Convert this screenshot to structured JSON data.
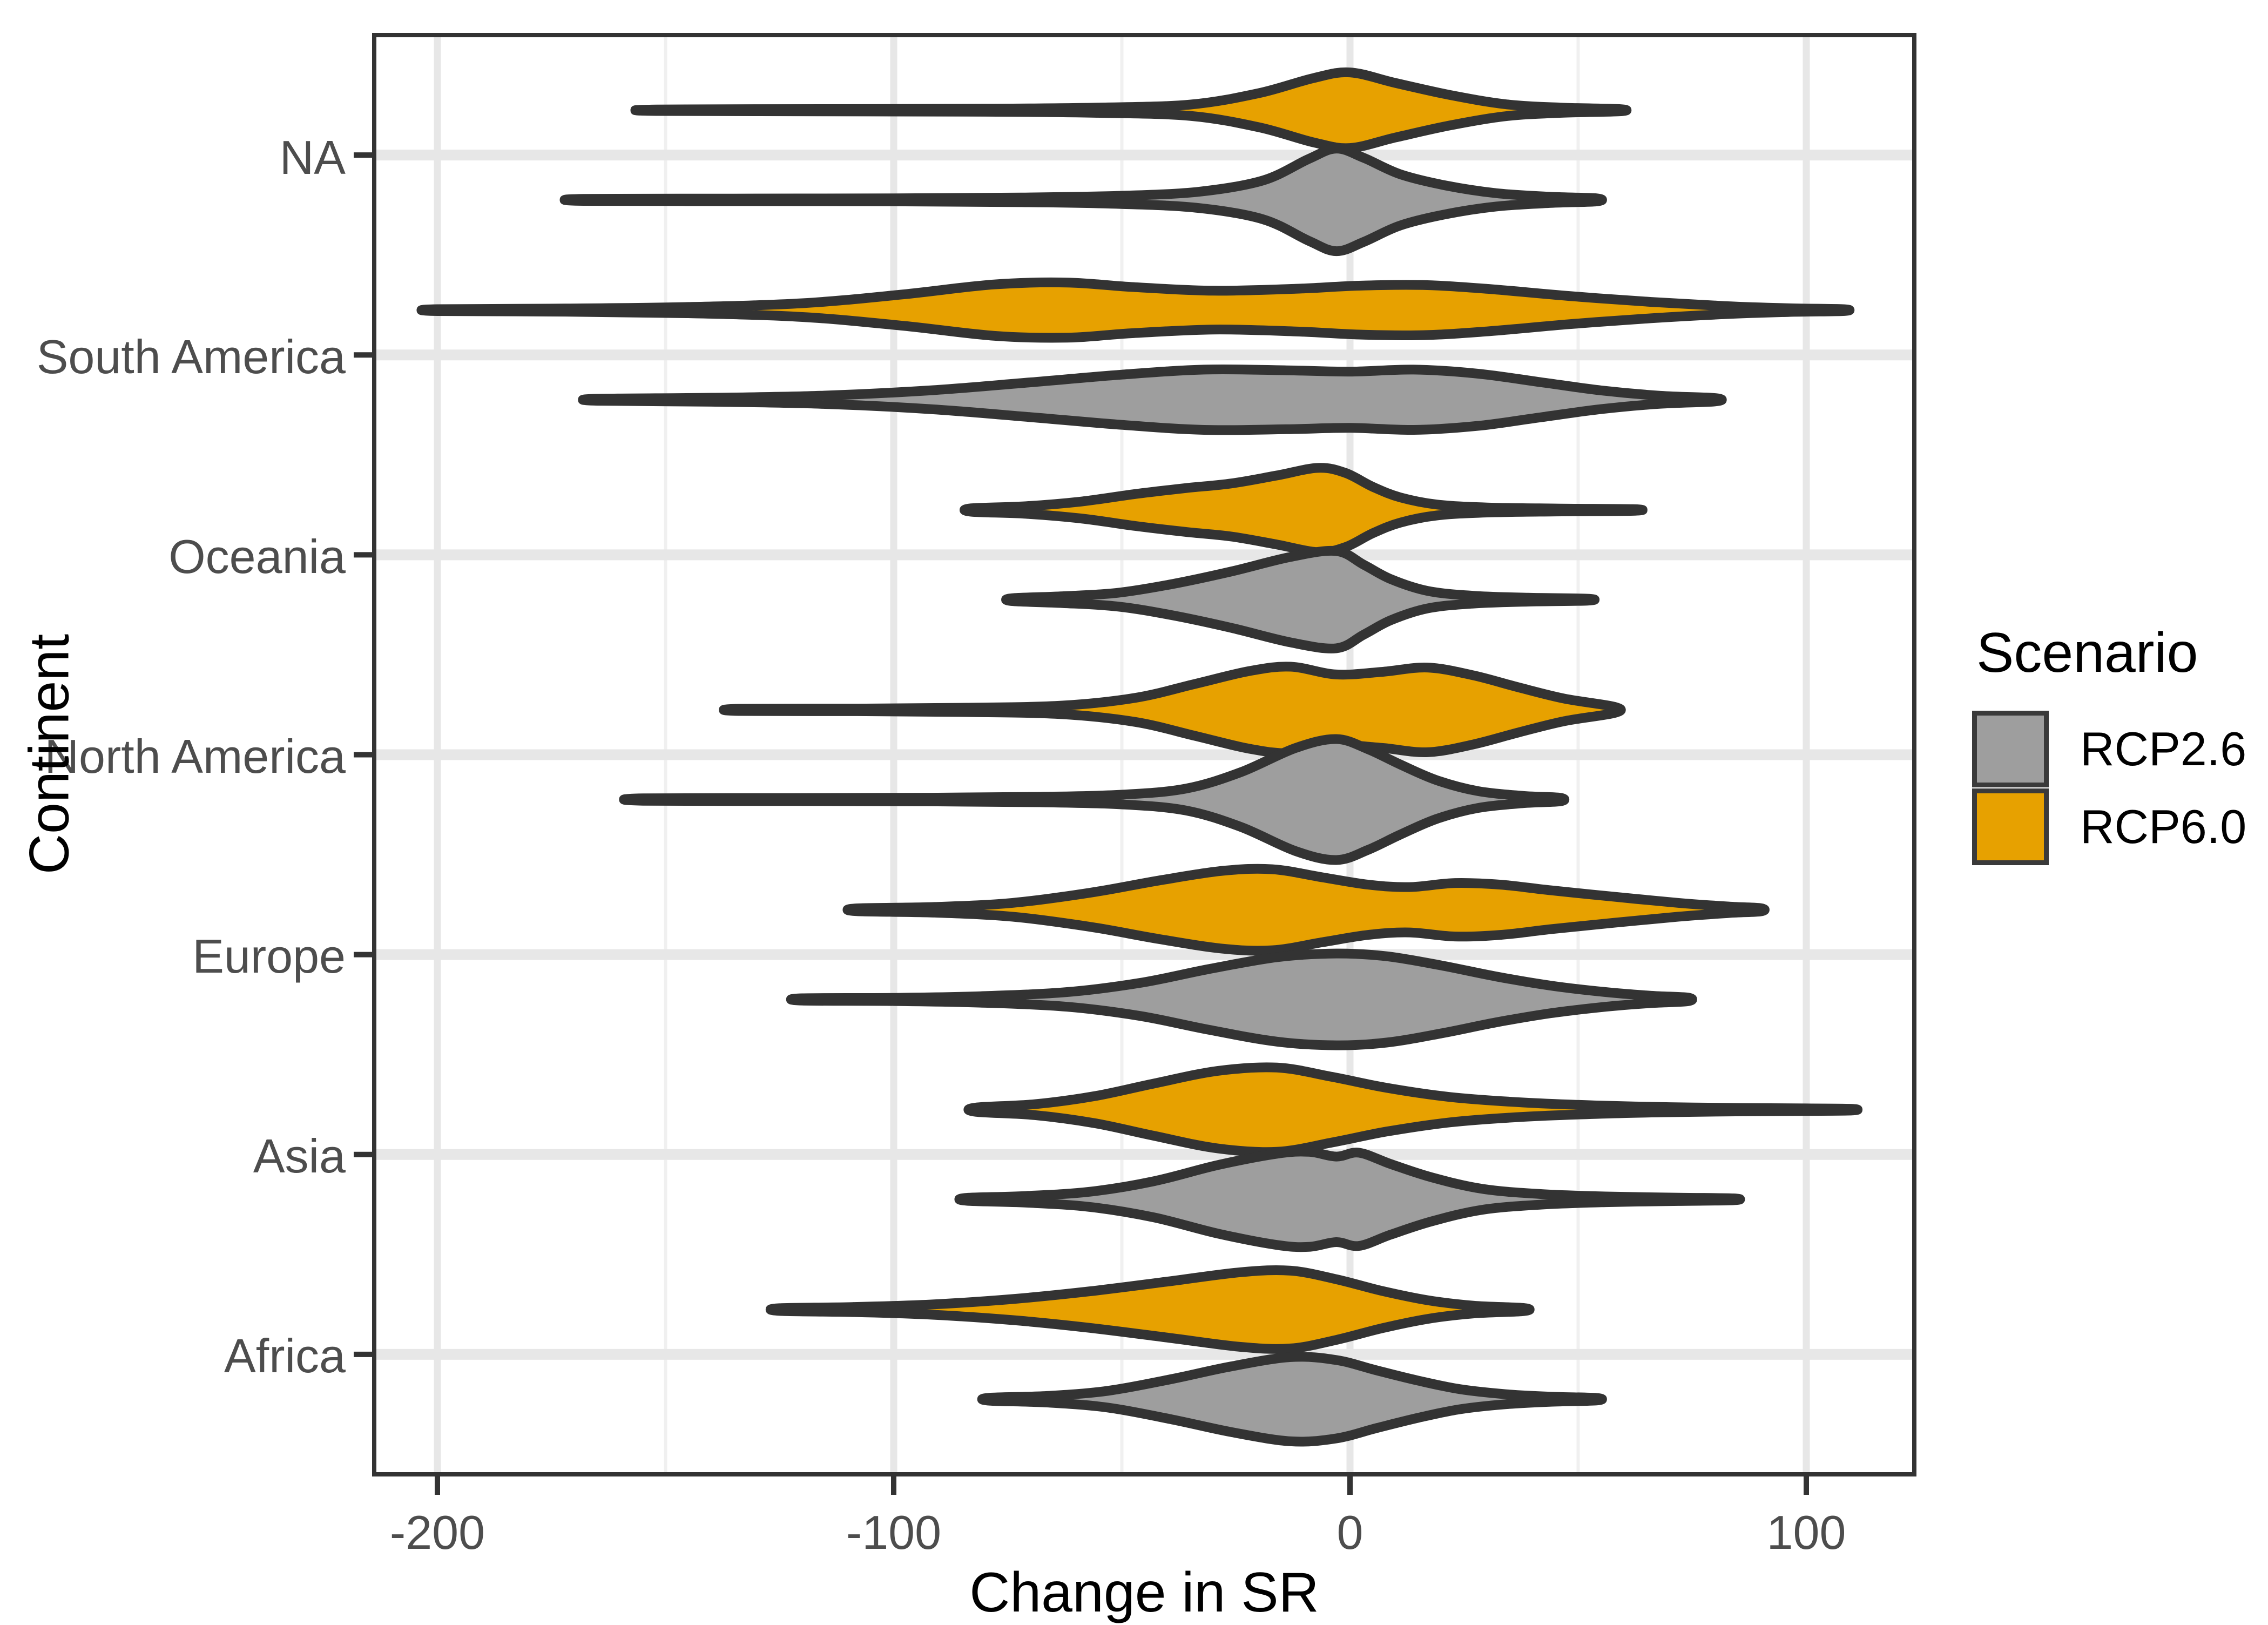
{
  "axes": {
    "x": {
      "title": "Change in SR",
      "ticks": [
        {
          "value": -200,
          "label": "-200"
        },
        {
          "value": -100,
          "label": "-100"
        },
        {
          "value": 0,
          "label": "0"
        },
        {
          "value": 100,
          "label": "100"
        }
      ],
      "minor_ticks": [
        -150,
        -50,
        50
      ],
      "domain": [
        -214,
        124
      ]
    },
    "y": {
      "title": "Continent",
      "categories": [
        "NA",
        "South America",
        "Oceania",
        "North America",
        "Europe",
        "Asia",
        "Africa"
      ]
    }
  },
  "legend": {
    "title": "Scenario",
    "items": [
      {
        "label": "RCP2.6",
        "color": "#9e9e9e"
      },
      {
        "label": "RCP6.0",
        "color": "#e7a100"
      }
    ]
  },
  "colors": {
    "background": "#ffffff",
    "panel_border": "#333333",
    "violin_outline": "#333333",
    "grid_major": "#e7e7e7",
    "grid_minor": "#f0f0f0",
    "tick_mark": "#333333",
    "tick_text": "#4d4d4d",
    "gray_fill": "#9e9e9e",
    "orange_fill": "#e7a100"
  },
  "chart_data": {
    "type": "violin",
    "orientation": "horizontal",
    "title": "",
    "xlabel": "Change in SR",
    "ylabel": "Continent",
    "x_ticks": [
      -200,
      -100,
      0,
      100
    ],
    "x_range": [
      -214,
      124
    ],
    "grid": true,
    "legend_position": "right",
    "groups": [
      "RCP2.6",
      "RCP6.0"
    ],
    "categories_top_to_bottom": [
      "NA",
      "South America",
      "Oceania",
      "North America",
      "Europe",
      "Asia",
      "Africa"
    ],
    "violins": [
      {
        "continent": "NA",
        "scenario": "RCP6.0",
        "color": "#e7a100",
        "min": -152,
        "max": 59,
        "peak": 0,
        "rel_height": 70,
        "profile": [
          [
            -152,
            0.02
          ],
          [
            -115,
            0.03
          ],
          [
            -80,
            0.04
          ],
          [
            -55,
            0.07
          ],
          [
            -35,
            0.15
          ],
          [
            -20,
            0.45
          ],
          [
            -8,
            0.85
          ],
          [
            0,
            1
          ],
          [
            10,
            0.72
          ],
          [
            22,
            0.4
          ],
          [
            34,
            0.16
          ],
          [
            46,
            0.07
          ],
          [
            59,
            0.03
          ]
        ]
      },
      {
        "continent": "NA",
        "scenario": "RCP2.6",
        "color": "#9e9e9e",
        "min": -168,
        "max": 54,
        "peak": -3,
        "rel_height": 95,
        "profile": [
          [
            -168,
            0.02
          ],
          [
            -135,
            0.025
          ],
          [
            -100,
            0.03
          ],
          [
            -72,
            0.045
          ],
          [
            -50,
            0.08
          ],
          [
            -33,
            0.16
          ],
          [
            -19,
            0.38
          ],
          [
            -9,
            0.8
          ],
          [
            -3,
            1
          ],
          [
            3,
            0.82
          ],
          [
            11,
            0.5
          ],
          [
            21,
            0.28
          ],
          [
            32,
            0.13
          ],
          [
            44,
            0.06
          ],
          [
            54,
            0.03
          ]
        ]
      },
      {
        "continent": "South America",
        "scenario": "RCP6.0",
        "color": "#e7a100",
        "min": -200,
        "max": 108,
        "peak": -65,
        "rel_height": 58,
        "profile": [
          [
            -200,
            0.03
          ],
          [
            -172,
            0.05
          ],
          [
            -145,
            0.1
          ],
          [
            -120,
            0.22
          ],
          [
            -98,
            0.5
          ],
          [
            -78,
            0.82
          ],
          [
            -62,
            0.88
          ],
          [
            -48,
            0.74
          ],
          [
            -30,
            0.62
          ],
          [
            -12,
            0.68
          ],
          [
            2,
            0.78
          ],
          [
            16,
            0.8
          ],
          [
            30,
            0.68
          ],
          [
            48,
            0.45
          ],
          [
            66,
            0.26
          ],
          [
            82,
            0.13
          ],
          [
            96,
            0.06
          ],
          [
            108,
            0.03
          ]
        ]
      },
      {
        "continent": "South America",
        "scenario": "RCP2.6",
        "color": "#9e9e9e",
        "min": -165,
        "max": 80,
        "peak": -25,
        "rel_height": 62,
        "profile": [
          [
            -165,
            0.03
          ],
          [
            -140,
            0.06
          ],
          [
            -116,
            0.12
          ],
          [
            -92,
            0.28
          ],
          [
            -70,
            0.52
          ],
          [
            -50,
            0.75
          ],
          [
            -32,
            0.9
          ],
          [
            -14,
            0.88
          ],
          [
            0,
            0.84
          ],
          [
            14,
            0.9
          ],
          [
            28,
            0.78
          ],
          [
            42,
            0.52
          ],
          [
            55,
            0.28
          ],
          [
            68,
            0.12
          ],
          [
            80,
            0.05
          ]
        ]
      },
      {
        "continent": "Oceania",
        "scenario": "RCP6.0",
        "color": "#e7a100",
        "min": -83,
        "max": 62,
        "peak": -7,
        "rel_height": 78,
        "profile": [
          [
            -83,
            0.04
          ],
          [
            -71,
            0.09
          ],
          [
            -59,
            0.2
          ],
          [
            -47,
            0.38
          ],
          [
            -36,
            0.52
          ],
          [
            -26,
            0.63
          ],
          [
            -16,
            0.82
          ],
          [
            -7,
            1
          ],
          [
            -1,
            0.88
          ],
          [
            5,
            0.55
          ],
          [
            11,
            0.3
          ],
          [
            19,
            0.13
          ],
          [
            30,
            0.06
          ],
          [
            45,
            0.035
          ],
          [
            62,
            0.02
          ]
        ]
      },
      {
        "continent": "Oceania",
        "scenario": "RCP2.6",
        "color": "#9e9e9e",
        "min": -74,
        "max": 52,
        "peak": -3,
        "rel_height": 90,
        "profile": [
          [
            -74,
            0.03
          ],
          [
            -63,
            0.07
          ],
          [
            -51,
            0.14
          ],
          [
            -39,
            0.32
          ],
          [
            -26,
            0.58
          ],
          [
            -13,
            0.88
          ],
          [
            -3,
            1
          ],
          [
            3,
            0.72
          ],
          [
            9,
            0.42
          ],
          [
            17,
            0.18
          ],
          [
            27,
            0.08
          ],
          [
            39,
            0.04
          ],
          [
            52,
            0.02
          ]
        ]
      },
      {
        "continent": "North America",
        "scenario": "RCP6.0",
        "color": "#e7a100",
        "min": -134,
        "max": 58,
        "peak": -13,
        "rel_height": 80,
        "profile": [
          [
            -134,
            0.025
          ],
          [
            -108,
            0.03
          ],
          [
            -84,
            0.05
          ],
          [
            -63,
            0.1
          ],
          [
            -47,
            0.28
          ],
          [
            -34,
            0.6
          ],
          [
            -22,
            0.9
          ],
          [
            -13,
            1
          ],
          [
            -3,
            0.82
          ],
          [
            7,
            0.88
          ],
          [
            17,
            0.98
          ],
          [
            27,
            0.8
          ],
          [
            37,
            0.52
          ],
          [
            47,
            0.26
          ],
          [
            58,
            0.07
          ]
        ]
      },
      {
        "continent": "North America",
        "scenario": "RCP2.6",
        "color": "#9e9e9e",
        "min": -155,
        "max": 46,
        "peak": -3,
        "rel_height": 112,
        "profile": [
          [
            -155,
            0.02
          ],
          [
            -122,
            0.025
          ],
          [
            -92,
            0.03
          ],
          [
            -68,
            0.045
          ],
          [
            -50,
            0.08
          ],
          [
            -36,
            0.18
          ],
          [
            -24,
            0.45
          ],
          [
            -12,
            0.85
          ],
          [
            -3,
            1
          ],
          [
            4,
            0.83
          ],
          [
            11,
            0.58
          ],
          [
            19,
            0.32
          ],
          [
            28,
            0.14
          ],
          [
            38,
            0.06
          ],
          [
            46,
            0.03
          ]
        ]
      },
      {
        "continent": "Europe",
        "scenario": "RCP6.0",
        "color": "#e7a100",
        "min": -108,
        "max": 90,
        "peak": -17,
        "rel_height": 75,
        "profile": [
          [
            -108,
            0.035
          ],
          [
            -91,
            0.07
          ],
          [
            -74,
            0.17
          ],
          [
            -57,
            0.42
          ],
          [
            -42,
            0.72
          ],
          [
            -28,
            0.96
          ],
          [
            -17,
            1
          ],
          [
            -6,
            0.8
          ],
          [
            4,
            0.62
          ],
          [
            13,
            0.56
          ],
          [
            23,
            0.66
          ],
          [
            33,
            0.62
          ],
          [
            44,
            0.48
          ],
          [
            58,
            0.32
          ],
          [
            72,
            0.17
          ],
          [
            83,
            0.08
          ],
          [
            90,
            0.04
          ]
        ]
      },
      {
        "continent": "Europe",
        "scenario": "RCP2.6",
        "color": "#9e9e9e",
        "min": -120,
        "max": 74,
        "peak": -3,
        "rel_height": 85,
        "profile": [
          [
            -120,
            0.025
          ],
          [
            -100,
            0.035
          ],
          [
            -81,
            0.07
          ],
          [
            -62,
            0.16
          ],
          [
            -46,
            0.36
          ],
          [
            -31,
            0.66
          ],
          [
            -16,
            0.92
          ],
          [
            -3,
            1
          ],
          [
            8,
            0.94
          ],
          [
            20,
            0.74
          ],
          [
            32,
            0.5
          ],
          [
            44,
            0.3
          ],
          [
            56,
            0.16
          ],
          [
            66,
            0.08
          ],
          [
            74,
            0.04
          ]
        ]
      },
      {
        "continent": "Asia",
        "scenario": "RCP6.0",
        "color": "#e7a100",
        "min": -82,
        "max": 110,
        "peak": -16,
        "rel_height": 78,
        "profile": [
          [
            -82,
            0.05
          ],
          [
            -69,
            0.13
          ],
          [
            -56,
            0.32
          ],
          [
            -43,
            0.62
          ],
          [
            -29,
            0.92
          ],
          [
            -16,
            1
          ],
          [
            -4,
            0.78
          ],
          [
            8,
            0.52
          ],
          [
            22,
            0.3
          ],
          [
            38,
            0.17
          ],
          [
            54,
            0.1
          ],
          [
            70,
            0.06
          ],
          [
            86,
            0.04
          ],
          [
            100,
            0.03
          ],
          [
            110,
            0.02
          ]
        ]
      },
      {
        "continent": "Asia",
        "scenario": "RCP2.6",
        "color": "#9e9e9e",
        "min": -84,
        "max": 84,
        "peak": -8,
        "rel_height": 88,
        "profile": [
          [
            -84,
            0.03
          ],
          [
            -71,
            0.07
          ],
          [
            -57,
            0.16
          ],
          [
            -43,
            0.38
          ],
          [
            -29,
            0.72
          ],
          [
            -16,
            0.96
          ],
          [
            -9,
            1
          ],
          [
            -3,
            0.9
          ],
          [
            2,
            0.98
          ],
          [
            9,
            0.74
          ],
          [
            18,
            0.46
          ],
          [
            29,
            0.22
          ],
          [
            42,
            0.11
          ],
          [
            56,
            0.06
          ],
          [
            72,
            0.035
          ],
          [
            84,
            0.02
          ]
        ]
      },
      {
        "continent": "Africa",
        "scenario": "RCP6.0",
        "color": "#e7a100",
        "min": -125,
        "max": 38,
        "peak": -13,
        "rel_height": 72,
        "profile": [
          [
            -125,
            0.035
          ],
          [
            -109,
            0.065
          ],
          [
            -92,
            0.13
          ],
          [
            -74,
            0.27
          ],
          [
            -57,
            0.47
          ],
          [
            -40,
            0.72
          ],
          [
            -24,
            0.96
          ],
          [
            -13,
            1
          ],
          [
            -3,
            0.78
          ],
          [
            7,
            0.48
          ],
          [
            17,
            0.24
          ],
          [
            27,
            0.1
          ],
          [
            38,
            0.04
          ]
        ]
      },
      {
        "continent": "Africa",
        "scenario": "RCP2.6",
        "color": "#9e9e9e",
        "min": -79,
        "max": 54,
        "peak": -13,
        "rel_height": 78,
        "profile": [
          [
            -79,
            0.035
          ],
          [
            -66,
            0.08
          ],
          [
            -53,
            0.2
          ],
          [
            -39,
            0.48
          ],
          [
            -26,
            0.78
          ],
          [
            -13,
            1
          ],
          [
            -3,
            0.93
          ],
          [
            6,
            0.68
          ],
          [
            15,
            0.44
          ],
          [
            24,
            0.24
          ],
          [
            34,
            0.12
          ],
          [
            44,
            0.06
          ],
          [
            54,
            0.03
          ]
        ]
      }
    ]
  }
}
